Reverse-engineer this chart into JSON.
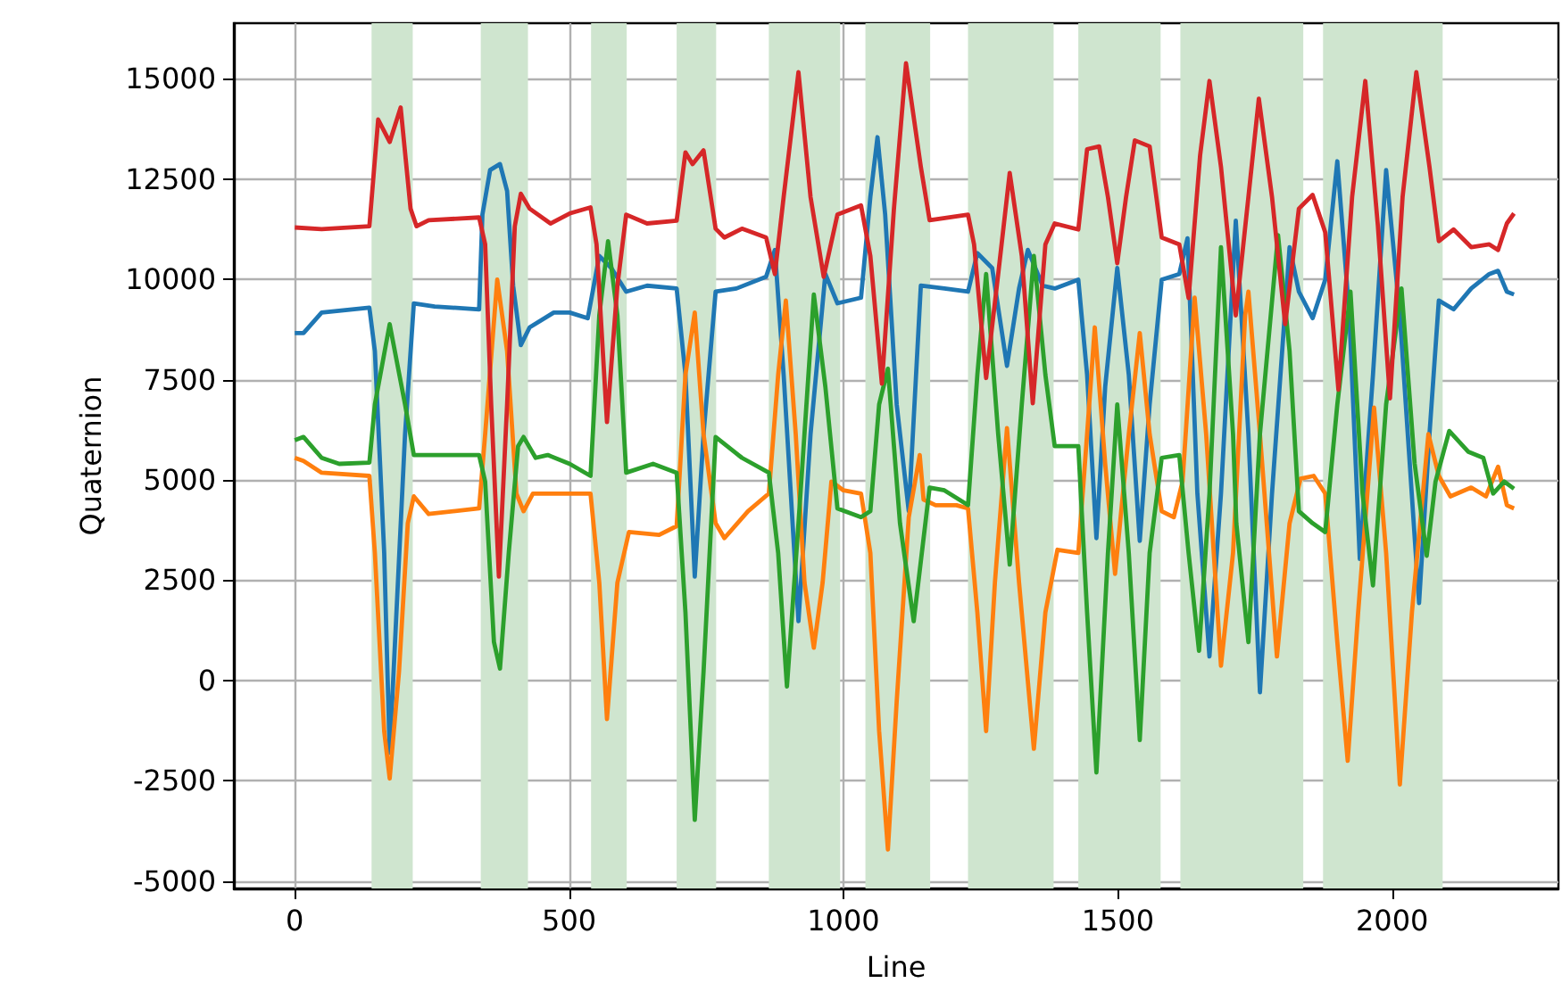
{
  "chart_data": {
    "type": "line",
    "xlabel": "Line",
    "ylabel": "Quaternion",
    "xlim": [
      -111,
      2303
    ],
    "ylim": [
      -5180,
      16380
    ],
    "xticks": [
      0,
      500,
      1000,
      1500,
      2000
    ],
    "yticks": [
      -5000,
      -2500,
      0,
      2500,
      5000,
      7500,
      10000,
      12500,
      15000
    ],
    "grid": true,
    "bands": [
      {
        "axis": "x",
        "from": 140,
        "to": 215,
        "color": "#cfe5cf"
      },
      {
        "axis": "x",
        "from": 339,
        "to": 425,
        "color": "#cfe5cf"
      },
      {
        "axis": "x",
        "from": 540,
        "to": 605,
        "color": "#cfe5cf"
      },
      {
        "axis": "x",
        "from": 696,
        "to": 768,
        "color": "#cfe5cf"
      },
      {
        "axis": "x",
        "from": 864,
        "to": 994,
        "color": "#cfe5cf"
      },
      {
        "axis": "x",
        "from": 1040,
        "to": 1158,
        "color": "#cfe5cf"
      },
      {
        "axis": "x",
        "from": 1227,
        "to": 1383,
        "color": "#cfe5cf"
      },
      {
        "axis": "x",
        "from": 1428,
        "to": 1578,
        "color": "#cfe5cf"
      },
      {
        "axis": "x",
        "from": 1614,
        "to": 1838,
        "color": "#cfe5cf"
      },
      {
        "axis": "x",
        "from": 1874,
        "to": 2092,
        "color": "#cfe5cf"
      }
    ],
    "series": [
      {
        "color": "#1f77b4",
        "x": [
          0,
          16,
          49,
          136,
          146,
          163,
          173,
          201,
          217,
          255,
          336,
          342,
          356,
          374,
          387,
          398,
          412,
          428,
          472,
          501,
          534,
          555,
          577,
          604,
          642,
          696,
          712,
          729,
          745,
          767,
          805,
          859,
          875,
          891,
          918,
          940,
          967,
          989,
          1032,
          1049,
          1062,
          1076,
          1097,
          1119,
          1141,
          1184,
          1227,
          1244,
          1271,
          1298,
          1320,
          1336,
          1363,
          1385,
          1428,
          1444,
          1461,
          1477,
          1499,
          1520,
          1540,
          1558,
          1580,
          1612,
          1627,
          1645,
          1667,
          1688,
          1715,
          1738,
          1759,
          1781,
          1813,
          1830,
          1855,
          1878,
          1900,
          1922,
          1941,
          1965,
          1989,
          2014,
          2049,
          2068,
          2085,
          2112,
          2144,
          2177,
          2193,
          2209,
          2222
        ],
        "values": [
          8660,
          8660,
          9170,
          9290,
          8210,
          3180,
          -1800,
          6140,
          9400,
          9320,
          9250,
          11610,
          12720,
          12870,
          12200,
          9840,
          8360,
          8800,
          9170,
          9170,
          9030,
          10580,
          10280,
          9690,
          9840,
          9770,
          7620,
          2590,
          6140,
          9690,
          9770,
          10060,
          10730,
          7620,
          1480,
          6140,
          10130,
          9400,
          9540,
          12050,
          13540,
          11610,
          6880,
          4220,
          9840,
          9770,
          9690,
          10650,
          10280,
          7840,
          9770,
          10730,
          9840,
          9770,
          9990,
          7620,
          3550,
          7320,
          10280,
          7620,
          3480,
          6880,
          9990,
          10130,
          11020,
          4660,
          600,
          4660,
          11460,
          6140,
          -290,
          4660,
          10800,
          9690,
          9030,
          9990,
          12940,
          9100,
          3030,
          7620,
          12720,
          9100,
          1930,
          6140,
          9470,
          9250,
          9770,
          10130,
          10210,
          9690,
          9620
        ]
      },
      {
        "color": "#ff7f0e",
        "x": [
          0,
          16,
          49,
          136,
          146,
          163,
          173,
          190,
          206,
          217,
          244,
          336,
          347,
          369,
          387,
          404,
          417,
          434,
          472,
          501,
          539,
          555,
          569,
          588,
          609,
          664,
          696,
          712,
          729,
          745,
          767,
          783,
          826,
          864,
          881,
          895,
          913,
          929,
          946,
          962,
          978,
          1000,
          1032,
          1049,
          1065,
          1081,
          1097,
          1119,
          1139,
          1146,
          1168,
          1206,
          1227,
          1244,
          1260,
          1276,
          1298,
          1320,
          1347,
          1368,
          1390,
          1428,
          1444,
          1458,
          1477,
          1495,
          1520,
          1540,
          1558,
          1580,
          1602,
          1618,
          1640,
          1661,
          1688,
          1710,
          1732,
          1738,
          1759,
          1790,
          1813,
          1833,
          1857,
          1878,
          1900,
          1919,
          1938,
          1967,
          1989,
          2014,
          2036,
          2066,
          2085,
          2106,
          2144,
          2171,
          2193,
          2209,
          2222
        ],
        "values": [
          5550,
          5470,
          5180,
          5100,
          3180,
          -1260,
          -2440,
          220,
          3920,
          4590,
          4150,
          4290,
          6140,
          9990,
          8210,
          4660,
          4220,
          4660,
          4660,
          4660,
          4660,
          2440,
          -960,
          2440,
          3700,
          3630,
          3850,
          7620,
          9170,
          6140,
          3920,
          3550,
          4220,
          4660,
          7620,
          9470,
          6140,
          2440,
          820,
          2440,
          4960,
          4740,
          4660,
          3180,
          -1260,
          -4210,
          -520,
          4070,
          5620,
          4510,
          4370,
          4370,
          4290,
          1700,
          -1260,
          2440,
          6290,
          2440,
          -1700,
          1700,
          3260,
          3180,
          6140,
          8800,
          5400,
          2660,
          6140,
          8660,
          6140,
          4220,
          4070,
          4960,
          9540,
          6140,
          370,
          3180,
          9100,
          9690,
          6140,
          600,
          3920,
          5030,
          5100,
          4660,
          960,
          -2000,
          1700,
          6800,
          3180,
          -2590,
          1700,
          6140,
          5100,
          4590,
          4810,
          4590,
          5330,
          4370,
          4290
        ]
      },
      {
        "color": "#2ca02c",
        "x": [
          0,
          16,
          49,
          81,
          136,
          146,
          173,
          201,
          217,
          255,
          336,
          347,
          363,
          374,
          390,
          407,
          417,
          439,
          461,
          501,
          539,
          555,
          571,
          588,
          604,
          653,
          696,
          712,
          729,
          745,
          767,
          815,
          864,
          881,
          897,
          918,
          946,
          967,
          989,
          1032,
          1049,
          1065,
          1081,
          1103,
          1128,
          1157,
          1184,
          1227,
          1244,
          1260,
          1282,
          1303,
          1325,
          1347,
          1368,
          1385,
          1428,
          1444,
          1461,
          1482,
          1499,
          1520,
          1540,
          1558,
          1580,
          1612,
          1629,
          1648,
          1667,
          1688,
          1710,
          1716,
          1738,
          1759,
          1792,
          1813,
          1830,
          1855,
          1878,
          1900,
          1924,
          1946,
          1965,
          1989,
          2017,
          2041,
          2063,
          2079,
          2104,
          2139,
          2166,
          2184,
          2204,
          2222
        ],
        "values": [
          5990,
          6070,
          5550,
          5400,
          5430,
          6880,
          8880,
          6880,
          5620,
          5620,
          5620,
          4960,
          960,
          300,
          3180,
          5840,
          6070,
          5550,
          5620,
          5400,
          5100,
          9100,
          10950,
          9100,
          5180,
          5400,
          5180,
          1700,
          -3470,
          220,
          6070,
          5550,
          5180,
          3180,
          -150,
          3920,
          9620,
          7320,
          4290,
          4070,
          4220,
          6880,
          7770,
          3920,
          1480,
          4810,
          4740,
          4370,
          7620,
          10130,
          6140,
          2890,
          6880,
          10580,
          7620,
          5840,
          5840,
          1700,
          -2290,
          3180,
          6880,
          3180,
          -1480,
          3180,
          5550,
          5620,
          3180,
          740,
          4660,
          10800,
          6140,
          3920,
          960,
          6140,
          11100,
          8210,
          4220,
          3920,
          3700,
          6880,
          9690,
          4660,
          2370,
          6880,
          9770,
          5400,
          3110,
          4960,
          6220,
          5700,
          5550,
          4660,
          4960,
          4780
        ]
      },
      {
        "color": "#d62728",
        "x": [
          0,
          49,
          136,
          152,
          173,
          193,
          211,
          222,
          244,
          336,
          347,
          358,
          372,
          387,
          401,
          412,
          428,
          466,
          501,
          539,
          550,
          569,
          588,
          604,
          642,
          696,
          712,
          725,
          745,
          767,
          783,
          815,
          859,
          875,
          891,
          918,
          940,
          964,
          989,
          1032,
          1049,
          1070,
          1092,
          1114,
          1141,
          1157,
          1227,
          1238,
          1260,
          1282,
          1303,
          1325,
          1345,
          1368,
          1385,
          1428,
          1444,
          1466,
          1482,
          1499,
          1515,
          1531,
          1558,
          1580,
          1612,
          1629,
          1650,
          1667,
          1688,
          1715,
          1738,
          1757,
          1781,
          1805,
          1830,
          1855,
          1878,
          1902,
          1927,
          1951,
          1974,
          1996,
          2019,
          2044,
          2068,
          2085,
          2112,
          2144,
          2177,
          2193,
          2209,
          2222
        ],
        "values": [
          11290,
          11250,
          11320,
          13980,
          13420,
          14280,
          11760,
          11320,
          11470,
          11540,
          10870,
          6880,
          2590,
          6880,
          11320,
          12130,
          11760,
          11390,
          11640,
          11790,
          10870,
          6440,
          9840,
          11610,
          11390,
          11460,
          13160,
          12870,
          13210,
          11260,
          11040,
          11260,
          11040,
          10130,
          12050,
          15160,
          12050,
          10060,
          11610,
          11840,
          10580,
          7400,
          11760,
          15380,
          12800,
          11470,
          11610,
          10870,
          7540,
          10130,
          12650,
          10580,
          6910,
          10870,
          11390,
          11240,
          13240,
          13310,
          12050,
          10400,
          12050,
          13460,
          13310,
          11040,
          10870,
          9530,
          13090,
          14940,
          12800,
          9100,
          12050,
          14500,
          12050,
          8880,
          11760,
          12100,
          11170,
          7250,
          12050,
          14940,
          11320,
          7030,
          12050,
          15160,
          12800,
          10950,
          11240,
          10800,
          10870,
          10730,
          11390,
          11640
        ]
      }
    ]
  }
}
